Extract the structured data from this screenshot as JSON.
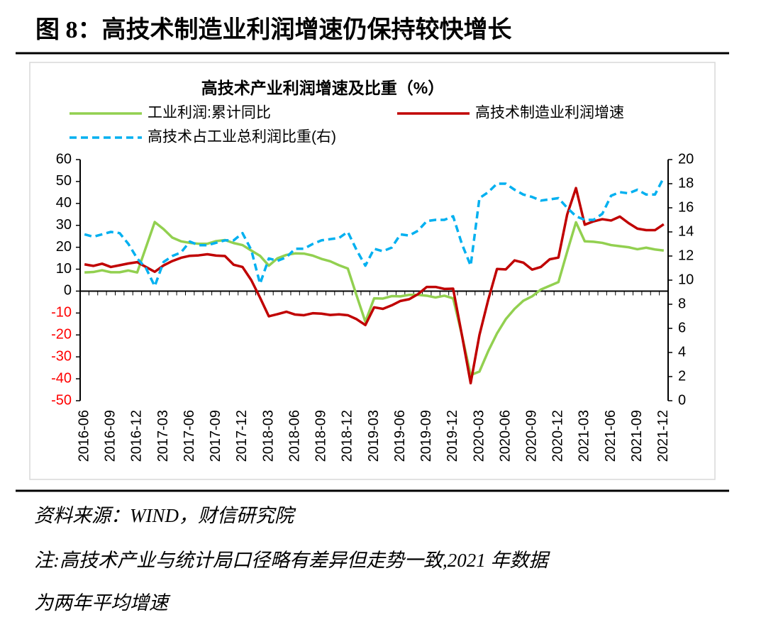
{
  "header": {
    "title": "图 8：高技术制造业利润增速仍保持较快增长"
  },
  "chart_data": {
    "type": "line",
    "title": "高技术产业利润增速及比重（%）",
    "categories": [
      "2016-06",
      null,
      null,
      "2016-09",
      null,
      null,
      "2016-12",
      null,
      null,
      "2017-03",
      null,
      null,
      "2017-06",
      null,
      null,
      "2017-09",
      null,
      null,
      "2017-12",
      null,
      null,
      "2018-03",
      null,
      null,
      "2018-06",
      null,
      null,
      "2018-09",
      null,
      null,
      "2018-12",
      null,
      null,
      "2019-03",
      null,
      null,
      "2019-06",
      null,
      null,
      "2019-09",
      null,
      null,
      "2019-12",
      null,
      null,
      "2020-03",
      null,
      null,
      "2020-06",
      null,
      null,
      "2020-09",
      null,
      null,
      "2020-12",
      null,
      null,
      "2021-03",
      null,
      null,
      "2021-06",
      null,
      null,
      "2021-09",
      null,
      null,
      "2021-12"
    ],
    "series": [
      {
        "name": "工业利润:累计同比",
        "color": "#92d050",
        "line_style": "solid",
        "axis": "y",
        "values": [
          8.5,
          8.7,
          9.5,
          8.6,
          8.6,
          9.4,
          8.5,
          20,
          31.5,
          28.3,
          24.4,
          22.7,
          22.0,
          21.6,
          21.6,
          22.8,
          23.3,
          21.9,
          21.0,
          18.5,
          16.1,
          11.6,
          15.0,
          16.5,
          17.2,
          17.1,
          16.2,
          14.7,
          13.6,
          11.8,
          10.3,
          -2,
          -14.0,
          -3.3,
          -3.4,
          -2.3,
          -2.4,
          -1.7,
          -1.7,
          -2.1,
          -2.9,
          -2.1,
          -3.3,
          -20,
          -38.3,
          -36.7,
          -27.4,
          -19.3,
          -12.8,
          -8.1,
          -4.4,
          -2.4,
          0.7,
          2.4,
          4.1,
          18,
          31.4,
          22.7,
          22.5,
          22.0,
          21.0,
          20.5,
          20.0,
          19.1,
          19.8,
          19.0,
          18.5
        ]
      },
      {
        "name": "高技术制造业利润增速",
        "color": "#c00000",
        "line_style": "solid",
        "axis": "y",
        "values": [
          12.2,
          11.5,
          12.5,
          11.0,
          11.8,
          12.6,
          13.2,
          11.0,
          8.8,
          11.7,
          13.7,
          15.2,
          16.1,
          16.3,
          16.8,
          16.2,
          16.0,
          12.0,
          11,
          5,
          -3,
          -11.5,
          -10.5,
          -9.4,
          -10.7,
          -11.0,
          -10.1,
          -10.3,
          -10.9,
          -10.6,
          -11.0,
          -12.8,
          -15.5,
          -7.4,
          -8.1,
          -6.5,
          -4.5,
          -3.7,
          -1.4,
          1.9,
          1.9,
          1.0,
          1.1,
          -20,
          -42.0,
          -20,
          -4,
          10.1,
          9.9,
          14.0,
          13.0,
          9.8,
          11.0,
          14.5,
          15.3,
          35,
          47,
          30.3,
          31.8,
          32.8,
          32.2,
          34.0,
          31.0,
          28.5,
          27.8,
          27.8,
          30.5
        ]
      },
      {
        "name": "高技术占工业总利润比重(右)",
        "color": "#00b0f0",
        "line_style": "dashed",
        "axis": "y2",
        "values": [
          13.8,
          13.6,
          13.8,
          14.0,
          13.9,
          13.0,
          11.8,
          11.0,
          9.5,
          11.5,
          12.0,
          12.3,
          13.2,
          12.9,
          12.9,
          13.1,
          13.3,
          13.3,
          13.9,
          12.5,
          9.7,
          11.8,
          11.6,
          11.9,
          12.6,
          12.6,
          13.0,
          13.3,
          13.4,
          13.5,
          14.0,
          12.5,
          11.2,
          12.6,
          12.4,
          12.7,
          13.8,
          13.7,
          14.1,
          14.9,
          15.0,
          15.0,
          15.3,
          13,
          11.2,
          16.8,
          17.3,
          18.0,
          18.0,
          17.5,
          17.1,
          16.9,
          16.6,
          16.7,
          16.8,
          16,
          15.3,
          15.0,
          15.0,
          15.5,
          17.0,
          17.3,
          17.2,
          17.5,
          17.1,
          17.1,
          18.5
        ]
      }
    ],
    "ylim": [
      -50,
      60
    ],
    "yticks": [
      -50,
      -40,
      -30,
      -20,
      -10,
      0,
      10,
      20,
      30,
      40,
      50,
      60
    ],
    "y2lim": [
      0,
      20
    ],
    "y2ticks": [
      0,
      2,
      4,
      6,
      8,
      10,
      12,
      14,
      16,
      18,
      20
    ],
    "negative_tick_color": "#ff0000",
    "grid": false
  },
  "source": "资料来源：WIND，财信研究院",
  "note": [
    "注:高技术产业与统计局口径略有差异但走势一致,2021 年数据",
    "为两年平均增速"
  ]
}
